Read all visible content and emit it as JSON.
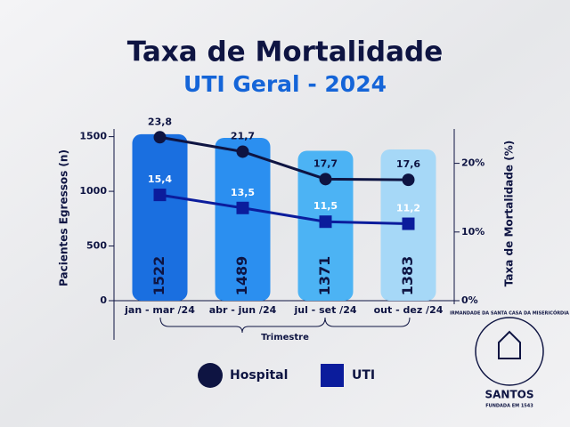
{
  "chart_data": {
    "type": "bar",
    "title": "Taxa de Mortalidade",
    "subtitle": "UTI Geral - 2024",
    "x_label": "Trimestre",
    "y_label": "Pacientes Egressos (n)",
    "y2_label": "Taxa de Mortalidade (%)",
    "categories": [
      "jan - mar /24",
      "abr - jun /24",
      "jul - set /24",
      "out - dez /24"
    ],
    "values": [
      1522,
      1489,
      1371,
      1383
    ],
    "colors": [
      "#1a6fe0",
      "#2b8ff0",
      "#4cb3f4",
      "#a6d8f7"
    ],
    "ylim": [
      0,
      1570
    ],
    "yticks": [
      0,
      500,
      1000,
      1500
    ],
    "y2lim": [
      0,
      25
    ],
    "y2ticks": [
      {
        "value": 0,
        "label": "0%"
      },
      {
        "value": 10,
        "label": "10%"
      },
      {
        "value": 20,
        "label": "20%"
      }
    ],
    "series": [
      {
        "name": "Hospital",
        "type": "line",
        "marker": "circle",
        "color": "#0e1442",
        "axis": "y2",
        "values": [
          23.8,
          21.7,
          17.7,
          17.6
        ],
        "value_labels": [
          "23,8",
          "21,7",
          "17,7",
          "17,6"
        ]
      },
      {
        "name": "UTI",
        "type": "line",
        "marker": "square",
        "color": "#0b1c9c",
        "axis": "y2",
        "values": [
          15.4,
          13.5,
          11.5,
          11.2
        ],
        "value_labels": [
          "15,4",
          "13,5",
          "11,5",
          "11,2"
        ]
      }
    ]
  },
  "logo": {
    "name": "SANTOS",
    "arc": "IRMANDADE DA SANTA CASA DA MISERICÓRDIA",
    "founded": "FUNDADA EM 1543"
  }
}
